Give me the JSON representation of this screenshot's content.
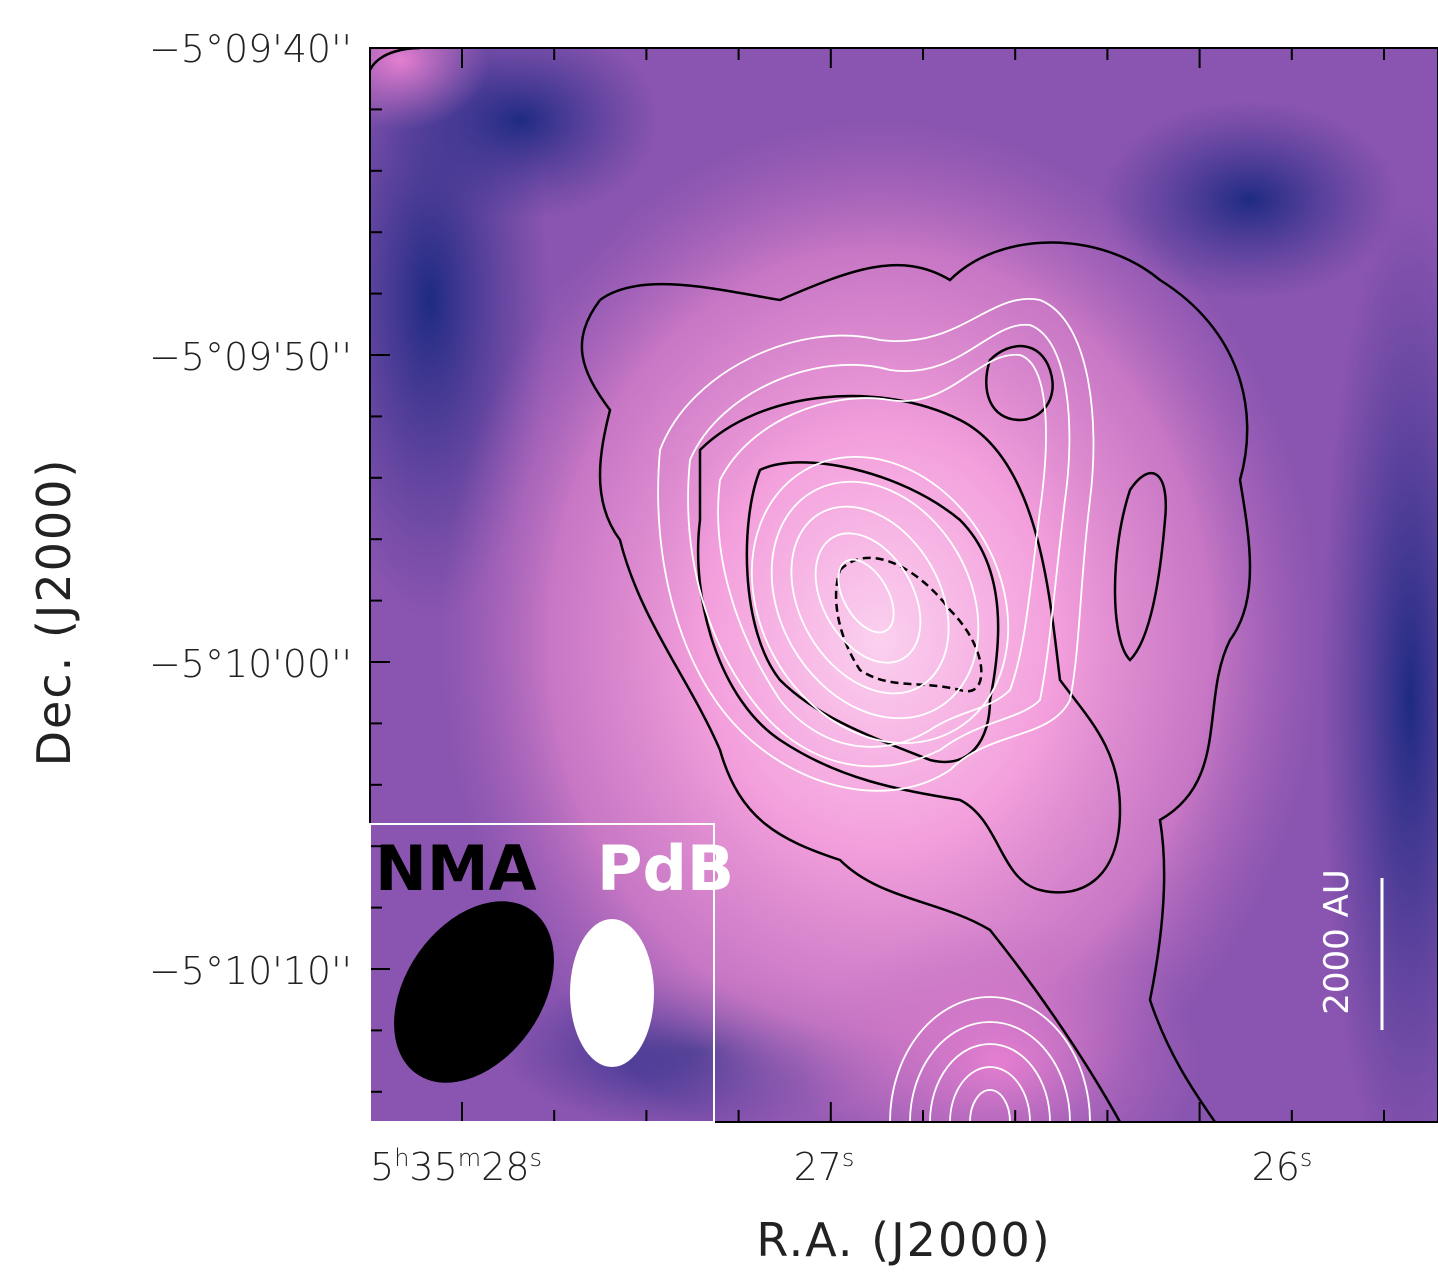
{
  "y_axis": {
    "label": "Dec. (J2000)",
    "ticks": [
      "−5°09'40''",
      "−5°09'50''",
      "−5°10'00''",
      "−5°10'10''"
    ]
  },
  "x_axis": {
    "label": "R.A. (J2000)",
    "ticks": [
      [
        [
          "5",
          "h"
        ],
        [
          "35",
          "m"
        ],
        [
          "28",
          "s"
        ]
      ],
      [
        [
          "27",
          "s"
        ]
      ],
      [
        [
          "26",
          "s"
        ]
      ]
    ]
  },
  "beams": {
    "nma": "NMA",
    "pdb": "PdB"
  },
  "scale_bar": "2000 AU"
}
